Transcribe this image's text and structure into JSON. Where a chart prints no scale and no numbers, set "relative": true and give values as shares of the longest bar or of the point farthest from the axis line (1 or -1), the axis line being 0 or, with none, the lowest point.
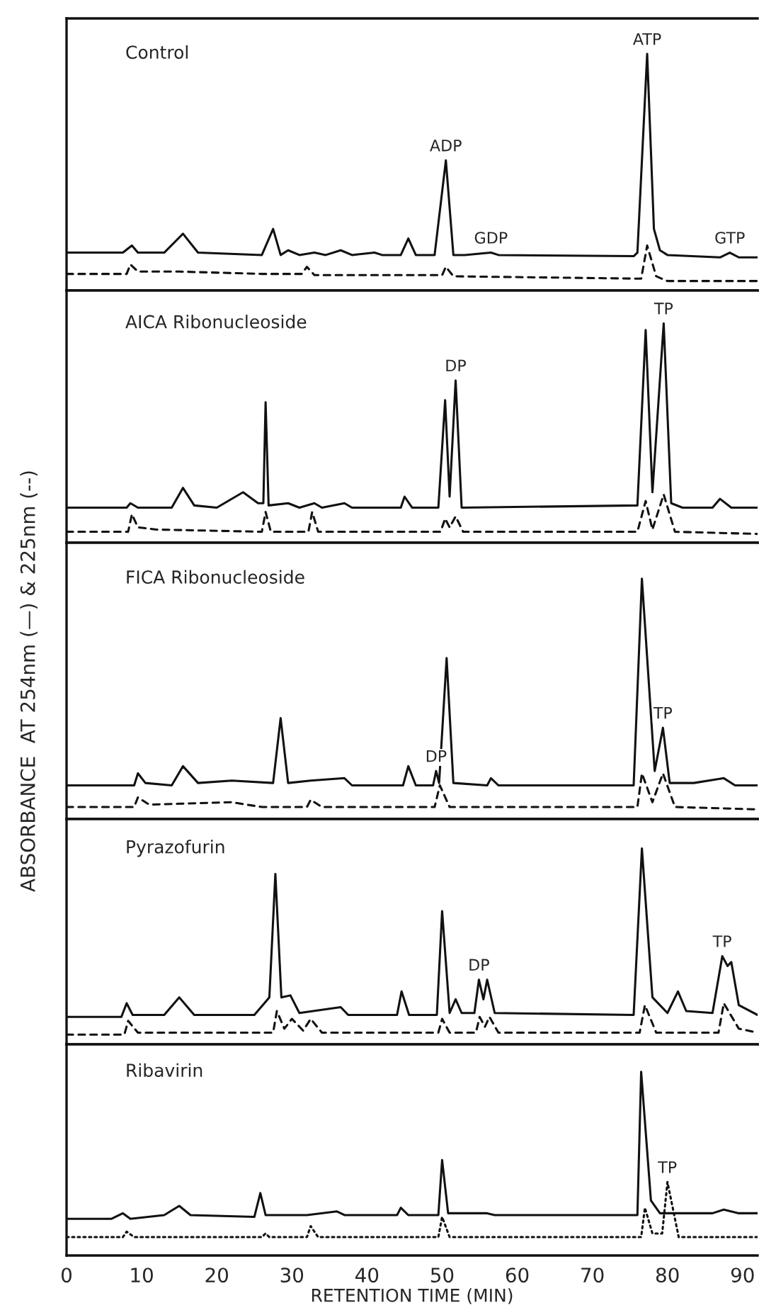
{
  "chart_data": [
    {
      "type": "line",
      "title": "Control",
      "relative": true,
      "xlim": [
        0,
        92
      ],
      "tick_labels": false,
      "grid": false,
      "legend": false,
      "series": [
        {
          "color": "#111111",
          "line_style": "solid",
          "x": [
            0,
            7.5,
            8.7,
            9.5,
            13,
            15.5,
            17.5,
            26,
            27.5,
            28.5,
            29.5,
            31,
            33,
            34.5,
            36.5,
            38,
            41,
            42,
            44.5,
            45.5,
            46.5,
            49,
            50.5,
            51.5,
            53,
            56.5,
            57.5,
            75.5,
            76,
            77.3,
            78.2,
            79,
            80,
            87,
            88.3,
            89.5,
            92
          ],
          "values": [
            0.16,
            0.16,
            0.19,
            0.16,
            0.16,
            0.24,
            0.16,
            0.15,
            0.26,
            0.15,
            0.17,
            0.15,
            0.16,
            0.15,
            0.17,
            0.15,
            0.16,
            0.15,
            0.15,
            0.22,
            0.15,
            0.15,
            0.55,
            0.15,
            0.15,
            0.16,
            0.15,
            0.145,
            0.16,
            1.0,
            0.26,
            0.17,
            0.15,
            0.14,
            0.16,
            0.14,
            0.14
          ]
        },
        {
          "color": "#111111",
          "line_style": "dashed",
          "x": [
            0,
            8,
            8.5,
            9.5,
            11.5,
            15,
            26,
            31.3,
            32,
            33,
            50,
            50.5,
            51.5,
            76.5,
            77.3,
            78.5,
            80,
            92
          ],
          "values": [
            0.07,
            0.07,
            0.11,
            0.08,
            0.08,
            0.08,
            0.07,
            0.07,
            0.1,
            0.065,
            0.065,
            0.1,
            0.06,
            0.05,
            0.19,
            0.06,
            0.04,
            0.04
          ]
        }
      ],
      "annotations": [
        {
          "text": "ADP",
          "x": 50.5,
          "y": 0.55
        },
        {
          "text": "GDP",
          "x": 56.5,
          "y": 0.16
        },
        {
          "text": "ATP",
          "x": 77.3,
          "y": 1.0
        },
        {
          "text": "GTP",
          "x": 88.3,
          "y": 0.16
        }
      ]
    },
    {
      "type": "line",
      "title": "AICA Ribonucleoside",
      "relative": true,
      "xlim": [
        0,
        92
      ],
      "tick_labels": false,
      "grid": false,
      "legend": false,
      "series": [
        {
          "color": "#111111",
          "line_style": "solid",
          "x": [
            0,
            8,
            8.5,
            9.5,
            14,
            15.5,
            17,
            20,
            23.5,
            25.5,
            26.2,
            26.5,
            26.9,
            29.5,
            31,
            33,
            34,
            37,
            38,
            44.5,
            45,
            46,
            49.5,
            50.4,
            51,
            51.8,
            52.6,
            76,
            77.1,
            78,
            79.5,
            80.5,
            82,
            86,
            87,
            88.5,
            92
          ],
          "values": [
            0.16,
            0.16,
            0.18,
            0.16,
            0.16,
            0.25,
            0.17,
            0.16,
            0.23,
            0.18,
            0.18,
            0.64,
            0.17,
            0.18,
            0.16,
            0.18,
            0.16,
            0.18,
            0.16,
            0.16,
            0.21,
            0.16,
            0.16,
            0.65,
            0.21,
            0.74,
            0.16,
            0.17,
            0.97,
            0.23,
            1.0,
            0.18,
            0.16,
            0.16,
            0.2,
            0.16,
            0.16
          ]
        },
        {
          "color": "#111111",
          "line_style": "dashed",
          "x": [
            0,
            8.2,
            8.7,
            9.5,
            12,
            26,
            26.5,
            27.2,
            32.2,
            32.7,
            33.5,
            49.8,
            50.4,
            51,
            51.8,
            52.8,
            76,
            77.1,
            78,
            79.5,
            81,
            92
          ],
          "values": [
            0.05,
            0.05,
            0.13,
            0.07,
            0.06,
            0.05,
            0.14,
            0.05,
            0.05,
            0.14,
            0.05,
            0.05,
            0.11,
            0.07,
            0.12,
            0.05,
            0.05,
            0.19,
            0.06,
            0.22,
            0.05,
            0.04
          ]
        }
      ],
      "annotations": [
        {
          "text": "DP",
          "x": 51.8,
          "y": 0.74
        },
        {
          "text": "TP",
          "x": 79.5,
          "y": 1.0
        }
      ]
    },
    {
      "type": "line",
      "title": "FICA Ribonucleoside",
      "ylabel": "ABSORBANCE  AT 254nm (—) & 225nm (--)",
      "relative": true,
      "xlim": [
        0,
        92
      ],
      "tick_labels": false,
      "grid": false,
      "legend": false,
      "series": [
        {
          "color": "#111111",
          "line_style": "solid",
          "x": [
            0,
            9,
            9.5,
            10.5,
            14,
            15.5,
            17.5,
            22,
            27.5,
            28.5,
            29.5,
            32.5,
            37,
            38,
            44.8,
            45.5,
            46.5,
            48.8,
            49.2,
            49.6,
            50.6,
            51.5,
            56,
            56.5,
            57.5,
            75.5,
            76.6,
            78.3,
            79.4,
            80.3,
            83.5,
            87.5,
            89,
            92
          ],
          "values": [
            0.14,
            0.14,
            0.19,
            0.15,
            0.14,
            0.22,
            0.15,
            0.16,
            0.15,
            0.42,
            0.15,
            0.16,
            0.17,
            0.14,
            0.14,
            0.22,
            0.14,
            0.14,
            0.2,
            0.15,
            0.67,
            0.15,
            0.14,
            0.17,
            0.14,
            0.14,
            1.0,
            0.2,
            0.38,
            0.15,
            0.15,
            0.17,
            0.14,
            0.14
          ]
        },
        {
          "color": "#111111",
          "line_style": "dashed",
          "x": [
            0,
            9,
            9.5,
            11,
            22,
            26,
            32,
            32.5,
            34,
            49,
            49.7,
            51,
            76,
            76.6,
            78,
            79.4,
            81,
            92
          ],
          "values": [
            0.05,
            0.05,
            0.09,
            0.06,
            0.07,
            0.05,
            0.05,
            0.08,
            0.05,
            0.05,
            0.14,
            0.05,
            0.05,
            0.19,
            0.07,
            0.19,
            0.05,
            0.04
          ]
        }
      ],
      "annotations": [
        {
          "text": "DP",
          "x": 49.2,
          "y": 0.2
        },
        {
          "text": "TP",
          "x": 79.4,
          "y": 0.38
        }
      ]
    },
    {
      "type": "line",
      "title": "Pyrazofurin",
      "relative": true,
      "xlim": [
        0,
        92
      ],
      "tick_labels": false,
      "grid": false,
      "legend": false,
      "series": [
        {
          "color": "#111111",
          "line_style": "solid",
          "x": [
            0,
            7.3,
            8,
            8.8,
            13,
            15,
            17,
            25,
            27,
            27.8,
            28.6,
            29.8,
            31,
            36.5,
            37.5,
            44,
            44.6,
            45.6,
            49.3,
            50,
            51,
            51.8,
            52.6,
            54.3,
            54.9,
            55.5,
            56,
            57,
            75.5,
            76.6,
            78,
            80,
            81.4,
            82.5,
            86,
            87.3,
            88,
            88.5,
            89.5,
            92
          ],
          "values": [
            0.14,
            0.14,
            0.21,
            0.15,
            0.15,
            0.24,
            0.15,
            0.15,
            0.24,
            0.87,
            0.24,
            0.25,
            0.16,
            0.19,
            0.15,
            0.15,
            0.27,
            0.15,
            0.15,
            0.68,
            0.16,
            0.23,
            0.16,
            0.16,
            0.33,
            0.23,
            0.33,
            0.16,
            0.15,
            1.0,
            0.24,
            0.16,
            0.27,
            0.17,
            0.16,
            0.45,
            0.4,
            0.42,
            0.2,
            0.15
          ]
        },
        {
          "color": "#111111",
          "line_style": "dashed",
          "x": [
            0,
            7.7,
            8.2,
            9.5,
            27.5,
            28,
            29,
            30,
            31.5,
            32.5,
            34,
            49.5,
            50,
            51,
            54.5,
            55,
            55.7,
            56.3,
            57.5,
            76.3,
            77,
            78.5,
            86.8,
            87.5,
            89.5,
            92
          ],
          "values": [
            0.05,
            0.05,
            0.12,
            0.06,
            0.06,
            0.17,
            0.08,
            0.13,
            0.07,
            0.13,
            0.06,
            0.06,
            0.13,
            0.06,
            0.06,
            0.14,
            0.09,
            0.14,
            0.06,
            0.06,
            0.2,
            0.06,
            0.06,
            0.21,
            0.08,
            0.06
          ]
        }
      ],
      "annotations": [
        {
          "text": "DP",
          "x": 54.9,
          "y": 0.33
        },
        {
          "text": "TP",
          "x": 87.3,
          "y": 0.45
        }
      ]
    },
    {
      "type": "line",
      "title": "Ribavirin",
      "xlabel": "RETENTION TIME (MIN)",
      "relative": true,
      "xlim": [
        0,
        92
      ],
      "xticks": [
        0,
        10,
        20,
        30,
        40,
        50,
        60,
        70,
        80,
        90
      ],
      "tick_labels": "x",
      "grid": false,
      "legend": false,
      "series": [
        {
          "color": "#111111",
          "line_style": "solid",
          "x": [
            0,
            6,
            7.5,
            8.5,
            13,
            15,
            16.5,
            25,
            25.8,
            26.5,
            32,
            36,
            37,
            44,
            44.5,
            45.5,
            49.5,
            50,
            50.8,
            56,
            57,
            76,
            76.5,
            77.8,
            79,
            86,
            87.5,
            89.5,
            92
          ],
          "values": [
            0.2,
            0.2,
            0.23,
            0.2,
            0.22,
            0.27,
            0.22,
            0.21,
            0.34,
            0.22,
            0.22,
            0.24,
            0.22,
            0.22,
            0.26,
            0.22,
            0.22,
            0.52,
            0.23,
            0.23,
            0.22,
            0.22,
            1.0,
            0.3,
            0.23,
            0.23,
            0.25,
            0.23,
            0.23
          ]
        },
        {
          "color": "#111111",
          "line_style": "dotted",
          "x": [
            0,
            7.5,
            8,
            9,
            26,
            26.5,
            27,
            32,
            32.5,
            33.5,
            49.5,
            50,
            51,
            76.5,
            77,
            78,
            79.3,
            80,
            81.5,
            92
          ],
          "values": [
            0.1,
            0.1,
            0.13,
            0.1,
            0.1,
            0.12,
            0.1,
            0.1,
            0.16,
            0.1,
            0.1,
            0.21,
            0.1,
            0.1,
            0.26,
            0.12,
            0.12,
            0.4,
            0.1,
            0.1
          ]
        }
      ],
      "annotations": [
        {
          "text": "TP",
          "x": 80,
          "y": 0.4
        }
      ]
    }
  ]
}
